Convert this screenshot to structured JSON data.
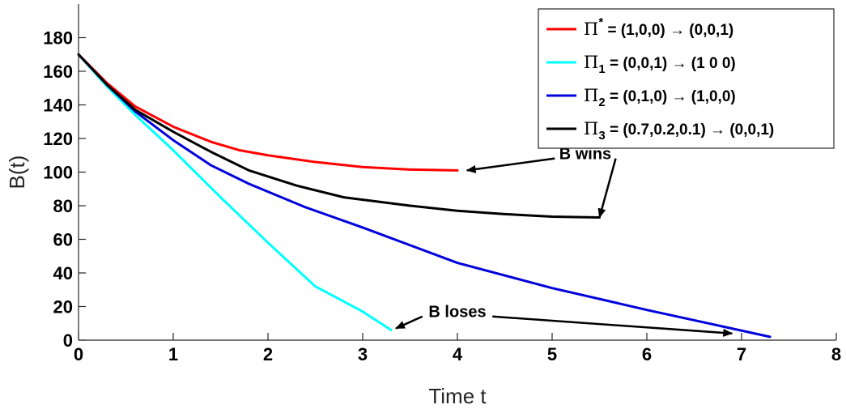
{
  "chart_data": {
    "type": "line",
    "title": "",
    "xlabel": "Time t",
    "ylabel": "B(t)",
    "xlim": [
      0,
      8
    ],
    "ylim": [
      0,
      200
    ],
    "xticks": [
      0,
      1,
      2,
      3,
      4,
      5,
      6,
      7,
      8
    ],
    "yticks": [
      0,
      20,
      40,
      60,
      80,
      100,
      120,
      140,
      160,
      180
    ],
    "grid": false,
    "legend_position": "top-right",
    "series": [
      {
        "name": "Π* = (1,0,0) → (0,0,1)",
        "color": "#ff0000",
        "x": [
          0,
          0.3,
          0.6,
          1.0,
          1.4,
          1.7,
          2.0,
          2.5,
          3.0,
          3.5,
          4.0
        ],
        "y": [
          170,
          153,
          139,
          127,
          118,
          113,
          110,
          106,
          103,
          101.5,
          101
        ]
      },
      {
        "name": "Π1 = (0,0,1) → (1 0 0)",
        "color": "#00ffff",
        "x": [
          0,
          0.3,
          0.6,
          1.0,
          1.5,
          2.0,
          2.5,
          3.0,
          3.3
        ],
        "y": [
          170,
          151,
          134,
          113,
          85,
          58,
          32,
          17,
          6
        ]
      },
      {
        "name": "Π2 = (0,1,0) → (1,0,0)",
        "color": "#0000dd",
        "x": [
          0,
          0.3,
          0.6,
          1.0,
          1.4,
          1.8,
          2.4,
          3.0,
          4.0,
          5.0,
          6.0,
          7.3
        ],
        "y": [
          170,
          152,
          136,
          119,
          104,
          93,
          79,
          67,
          46,
          31,
          18,
          2
        ]
      },
      {
        "name": "Π3 = (0.7,0.2,0.1) → (0,0,1)",
        "color": "#000000",
        "x": [
          0,
          0.3,
          0.6,
          1.0,
          1.4,
          1.8,
          2.3,
          2.8,
          3.5,
          4.0,
          4.5,
          5.0,
          5.5
        ],
        "y": [
          170,
          152,
          137,
          124,
          112,
          101,
          92,
          85,
          80,
          77,
          75,
          73.5,
          73
        ]
      }
    ],
    "annotations": [
      {
        "text": "B wins",
        "anchor": [
          5.35,
          111
        ],
        "arrows_to": [
          [
            4.1,
            101
          ],
          [
            5.5,
            73
          ]
        ]
      },
      {
        "text": "B loses",
        "anchor": [
          4.0,
          17
        ],
        "arrows_to": [
          [
            3.35,
            7
          ],
          [
            6.9,
            4
          ]
        ]
      }
    ]
  },
  "legend_labels": [
    {
      "greek": "Π",
      "sub": "*",
      "sup": true,
      "text": " = (1,0,0) → (0,0,1)"
    },
    {
      "greek": "Π",
      "sub": "1",
      "sup": false,
      "text": " = (0,0,1) → (1 0 0)"
    },
    {
      "greek": "Π",
      "sub": "2",
      "sup": false,
      "text": " = (0,1,0) → (1,0,0)"
    },
    {
      "greek": "Π",
      "sub": "3",
      "sup": false,
      "text": " = (0.7,0.2,0.1) → (0,0,1)"
    }
  ]
}
